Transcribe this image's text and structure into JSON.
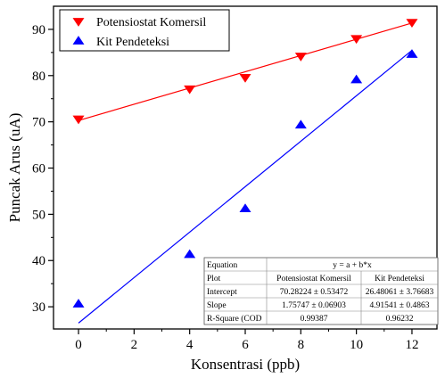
{
  "chart_data": {
    "type": "scatter",
    "xlabel": "Konsentrasi (ppb)",
    "ylabel": "Puncak Arus (uA)",
    "xlim": [
      -0.9,
      12.9
    ],
    "ylim": [
      25.2,
      95
    ],
    "x_ticks": [
      "0",
      "2",
      "4",
      "6",
      "8",
      "10",
      "12"
    ],
    "y_ticks": [
      "30",
      "40",
      "50",
      "60",
      "70",
      "80",
      "90"
    ],
    "grid": false,
    "legend_position": "top-left",
    "series": [
      {
        "name": "Potensiostat Komersil",
        "color": "#ff0000",
        "marker": "triangle-down",
        "x": [
          0,
          4,
          6,
          8,
          10,
          12
        ],
        "y": [
          70.6,
          77.1,
          79.6,
          84.2,
          88.0,
          91.5
        ],
        "fit": {
          "intercept": 70.28224,
          "slope": 1.75747
        }
      },
      {
        "name": "Kit Pendeteksi",
        "color": "#0000ff",
        "marker": "triangle-up",
        "x": [
          0,
          4,
          6,
          8,
          10,
          12
        ],
        "y": [
          30.6,
          41.3,
          51.2,
          69.3,
          79.1,
          84.6
        ],
        "fit": {
          "intercept": 26.48061,
          "slope": 4.91541
        }
      }
    ],
    "fit_table": {
      "rows": [
        [
          "Equation",
          "y = a + b*x",
          ""
        ],
        [
          "Plot",
          "Potensiostat Komersil",
          "Kit Pendeteksi"
        ],
        [
          "Intercept",
          "70.28224 ± 0.53472",
          "26.48061 ± 3.76683"
        ],
        [
          "Slope",
          "1.75747 ± 0.06903",
          "4.91541 ± 0.4863"
        ],
        [
          "R-Square (COD",
          "0.99387",
          "0.96232"
        ]
      ]
    }
  }
}
